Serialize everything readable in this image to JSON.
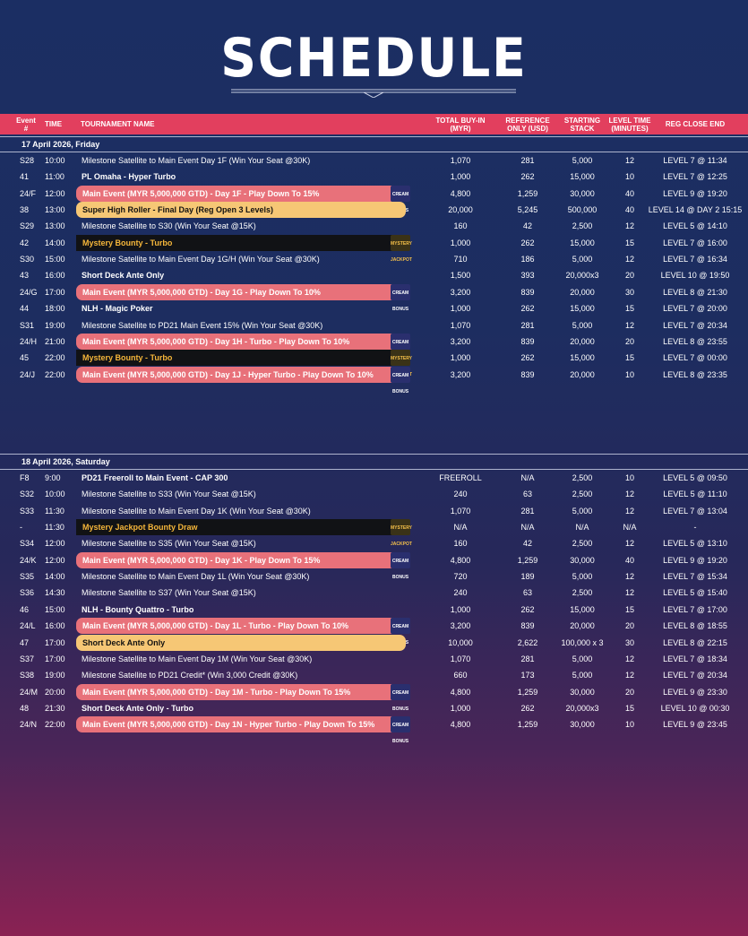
{
  "page": {
    "title": "SCHEDULE"
  },
  "header": {
    "event": [
      "Event",
      "#"
    ],
    "time": "TIME",
    "name": "TOURNAMENT NAME",
    "buyin": [
      "TOTAL BUY-IN",
      "(MYR)"
    ],
    "reference": [
      "REFERENCE",
      "ONLY (USD)"
    ],
    "stack": [
      "STARTING",
      "STACK"
    ],
    "level": [
      "LEVEL TIME",
      "(MINUTES)"
    ],
    "reg": "REG CLOSE END"
  },
  "badges": {
    "bonus": [
      "CREAM",
      "BONUS"
    ],
    "jackpot": [
      "MYSTERY",
      "JACKPOT"
    ]
  },
  "day1": {
    "date": "17 April 2026, Friday",
    "rows": [
      {
        "ev": "S28",
        "time": "10:00",
        "name": "Milestone Satellite to Main Event Day 1F (Win Your Seat @30K)",
        "style": "plain",
        "buy": "1,070",
        "ref": "281",
        "stack": "5,000",
        "lvl": "12",
        "reg": "LEVEL 7 @ 11:34"
      },
      {
        "ev": "41",
        "time": "11:00",
        "name": "PL Omaha - Hyper Turbo",
        "style": "bold",
        "buy": "1,000",
        "ref": "262",
        "stack": "15,000",
        "lvl": "10",
        "reg": "LEVEL 7 @ 12:25"
      },
      {
        "ev": "24/F",
        "time": "12:00",
        "name": "Main Event (MYR 5,000,000 GTD) - Day 1F - Play Down To 15%",
        "style": "main",
        "buy": "4,800",
        "ref": "1,259",
        "stack": "30,000",
        "lvl": "40",
        "reg": "LEVEL 9 @ 19:20"
      },
      {
        "ev": "38",
        "time": "13:00",
        "name": "Super High Roller - Final Day (Reg Open 3 Levels)",
        "style": "orange",
        "buy": "20,000",
        "ref": "5,245",
        "stack": "500,000",
        "lvl": "40",
        "reg": "LEVEL 14 @ DAY 2 15:15"
      },
      {
        "ev": "S29",
        "time": "13:00",
        "name": "Milestone Satellite to S30 (Win Your Seat @15K)",
        "style": "plain",
        "buy": "160",
        "ref": "42",
        "stack": "2,500",
        "lvl": "12",
        "reg": "LEVEL 5 @ 14:10"
      },
      {
        "ev": "42",
        "time": "14:00",
        "name": "Mystery Bounty - Turbo",
        "style": "dark",
        "buy": "1,000",
        "ref": "262",
        "stack": "15,000",
        "lvl": "15",
        "reg": "LEVEL 7 @ 16:00"
      },
      {
        "ev": "S30",
        "time": "15:00",
        "name": "Milestone Satellite to Main Event Day 1G/H (Win Your Seat @30K)",
        "style": "plain",
        "buy": "710",
        "ref": "186",
        "stack": "5,000",
        "lvl": "12",
        "reg": "LEVEL 7 @ 16:34"
      },
      {
        "ev": "43",
        "time": "16:00",
        "name": "Short Deck Ante Only",
        "style": "bold",
        "buy": "1,500",
        "ref": "393",
        "stack": "20,000x3",
        "lvl": "20",
        "reg": "LEVEL 10 @ 19:50"
      },
      {
        "ev": "24/G",
        "time": "17:00",
        "name": "Main Event (MYR 5,000,000 GTD) - Day 1G - Play Down To 10%",
        "style": "main",
        "buy": "3,200",
        "ref": "839",
        "stack": "20,000",
        "lvl": "30",
        "reg": "LEVEL 8 @ 21:30"
      },
      {
        "ev": "44",
        "time": "18:00",
        "name": "NLH - Magic Poker",
        "style": "bold",
        "buy": "1,000",
        "ref": "262",
        "stack": "15,000",
        "lvl": "15",
        "reg": "LEVEL 7 @ 20:00"
      },
      {
        "ev": "S31",
        "time": "19:00",
        "name": "Milestone Satellite to PD21 Main Event 15% (Win Your Seat @30K)",
        "style": "plain",
        "buy": "1,070",
        "ref": "281",
        "stack": "5,000",
        "lvl": "12",
        "reg": "LEVEL 7 @ 20:34"
      },
      {
        "ev": "24/H",
        "time": "21:00",
        "name": "Main Event (MYR 5,000,000 GTD) - Day 1H - Turbo - Play Down To 10%",
        "style": "main",
        "buy": "3,200",
        "ref": "839",
        "stack": "20,000",
        "lvl": "20",
        "reg": "LEVEL 8 @ 23:55"
      },
      {
        "ev": "45",
        "time": "22:00",
        "name": "Mystery Bounty - Turbo",
        "style": "dark",
        "buy": "1,000",
        "ref": "262",
        "stack": "15,000",
        "lvl": "15",
        "reg": "LEVEL 7 @ 00:00"
      },
      {
        "ev": "24/J",
        "time": "22:00",
        "name": "Main Event (MYR 5,000,000 GTD) - Day 1J - Hyper Turbo - Play Down To 10%",
        "style": "main",
        "buy": "3,200",
        "ref": "839",
        "stack": "20,000",
        "lvl": "10",
        "reg": "LEVEL 8 @ 23:35"
      }
    ]
  },
  "day2": {
    "date": "18 April 2026, Saturday",
    "rows": [
      {
        "ev": "F8",
        "time": "9:00",
        "name": "PD21 Freeroll to Main Event - CAP 300",
        "style": "bold",
        "buy": "FREEROLL",
        "ref": "N/A",
        "stack": "2,500",
        "lvl": "10",
        "reg": "LEVEL 5 @ 09:50"
      },
      {
        "ev": "S32",
        "time": "10:00",
        "name": "Milestone Satellite to S33 (Win Your Seat @15K)",
        "style": "plain",
        "buy": "240",
        "ref": "63",
        "stack": "2,500",
        "lvl": "12",
        "reg": "LEVEL 5 @ 11:10"
      },
      {
        "ev": "S33",
        "time": "11:30",
        "name": "Milestone Satellite to Main Event Day 1K (Win Your Seat @30K)",
        "style": "plain",
        "buy": "1,070",
        "ref": "281",
        "stack": "5,000",
        "lvl": "12",
        "reg": "LEVEL 7 @ 13:04"
      },
      {
        "ev": "-",
        "time": "11:30",
        "name": "Mystery Jackpot Bounty Draw",
        "style": "dark",
        "buy": "N/A",
        "ref": "N/A",
        "stack": "N/A",
        "lvl": "N/A",
        "reg": "-"
      },
      {
        "ev": "S34",
        "time": "12:00",
        "name": "Milestone Satellite to S35 (Win Your Seat @15K)",
        "style": "plain",
        "buy": "160",
        "ref": "42",
        "stack": "2,500",
        "lvl": "12",
        "reg": "LEVEL 5 @ 13:10"
      },
      {
        "ev": "24/K",
        "time": "12:00",
        "name": "Main Event (MYR 5,000,000 GTD) - Day 1K - Play Down To 15%",
        "style": "main",
        "buy": "4,800",
        "ref": "1,259",
        "stack": "30,000",
        "lvl": "40",
        "reg": "LEVEL 9 @ 19:20"
      },
      {
        "ev": "S35",
        "time": "14:00",
        "name": "Milestone Satellite to Main Event Day 1L (Win Your Seat @30K)",
        "style": "plain",
        "buy": "720",
        "ref": "189",
        "stack": "5,000",
        "lvl": "12",
        "reg": "LEVEL 7 @ 15:34"
      },
      {
        "ev": "S36",
        "time": "14:30",
        "name": "Milestone Satellite to S37 (Win Your Seat @15K)",
        "style": "plain",
        "buy": "240",
        "ref": "63",
        "stack": "2,500",
        "lvl": "12",
        "reg": "LEVEL 5 @ 15:40"
      },
      {
        "ev": "46",
        "time": "15:00",
        "name": "NLH - Bounty Quattro - Turbo",
        "style": "bold",
        "buy": "1,000",
        "ref": "262",
        "stack": "15,000",
        "lvl": "15",
        "reg": "LEVEL 7 @ 17:00"
      },
      {
        "ev": "24/L",
        "time": "16:00",
        "name": "Main Event (MYR 5,000,000 GTD) - Day 1L - Turbo - Play Down To 10%",
        "style": "main",
        "buy": "3,200",
        "ref": "839",
        "stack": "20,000",
        "lvl": "20",
        "reg": "LEVEL 8 @ 18:55"
      },
      {
        "ev": "47",
        "time": "17:00",
        "name": "Short Deck Ante Only",
        "style": "orange",
        "buy": "10,000",
        "ref": "2,622",
        "stack": "100,000 x 3",
        "lvl": "30",
        "reg": "LEVEL 8 @ 22:15"
      },
      {
        "ev": "S37",
        "time": "17:00",
        "name": "Milestone Satellite to Main Event Day 1M (Win Your Seat @30K)",
        "style": "plain",
        "buy": "1,070",
        "ref": "281",
        "stack": "5,000",
        "lvl": "12",
        "reg": "LEVEL 7 @ 18:34"
      },
      {
        "ev": "S38",
        "time": "19:00",
        "name": "Milestone Satellite to PD21 Credit* (Win 3,000 Credit @30K)",
        "style": "plain",
        "buy": "660",
        "ref": "173",
        "stack": "5,000",
        "lvl": "12",
        "reg": "LEVEL 7 @ 20:34"
      },
      {
        "ev": "24/M",
        "time": "20:00",
        "name": "Main Event (MYR 5,000,000 GTD) - Day 1M - Turbo - Play Down To 15%",
        "style": "main",
        "buy": "4,800",
        "ref": "1,259",
        "stack": "30,000",
        "lvl": "20",
        "reg": "LEVEL 9 @ 23:30"
      },
      {
        "ev": "48",
        "time": "21:30",
        "name": "Short Deck Ante Only - Turbo",
        "style": "bold",
        "buy": "1,000",
        "ref": "262",
        "stack": "20,000x3",
        "lvl": "15",
        "reg": "LEVEL 10 @ 00:30"
      },
      {
        "ev": "24/N",
        "time": "22:00",
        "name": "Main Event (MYR 5,000,000 GTD) - Day 1N - Hyper Turbo - Play Down To 15%",
        "style": "main",
        "buy": "4,800",
        "ref": "1,259",
        "stack": "30,000",
        "lvl": "10",
        "reg": "LEVEL 9 @ 23:45"
      }
    ]
  }
}
